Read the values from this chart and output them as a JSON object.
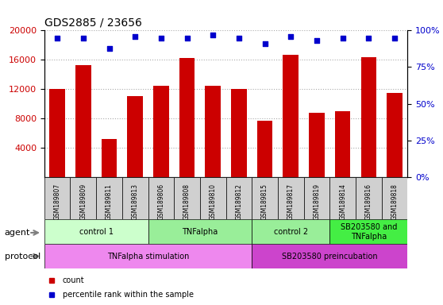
{
  "title": "GDS2885 / 23656",
  "samples": [
    "GSM189807",
    "GSM189809",
    "GSM189811",
    "GSM189813",
    "GSM189806",
    "GSM189808",
    "GSM189810",
    "GSM189812",
    "GSM189815",
    "GSM189817",
    "GSM189819",
    "GSM189814",
    "GSM189816",
    "GSM189818"
  ],
  "counts": [
    12000,
    15300,
    5200,
    11000,
    12500,
    16200,
    12500,
    12000,
    7700,
    16700,
    8800,
    9000,
    16300,
    11500
  ],
  "percentile_ranks": [
    95,
    95,
    88,
    96,
    95,
    95,
    97,
    95,
    91,
    96,
    93,
    95,
    95,
    95
  ],
  "ylim_left": [
    0,
    20000
  ],
  "ylim_right": [
    0,
    100
  ],
  "yticks_left": [
    4000,
    8000,
    12000,
    16000,
    20000
  ],
  "yticks_right": [
    0,
    25,
    50,
    75,
    100
  ],
  "bar_color": "#cc0000",
  "dot_color": "#0000cc",
  "agent_groups": [
    {
      "label": "control 1",
      "start": 0,
      "end": 4,
      "color": "#ccffcc"
    },
    {
      "label": "TNFalpha",
      "start": 4,
      "end": 8,
      "color": "#99ee99"
    },
    {
      "label": "control 2",
      "start": 8,
      "end": 11,
      "color": "#99ee99"
    },
    {
      "label": "SB203580 and\nTNFalpha",
      "start": 11,
      "end": 14,
      "color": "#44ee44"
    }
  ],
  "protocol_groups": [
    {
      "label": "TNFalpha stimulation",
      "start": 0,
      "end": 8,
      "color": "#ee88ee"
    },
    {
      "label": "SB203580 preincubation",
      "start": 8,
      "end": 14,
      "color": "#cc44cc"
    }
  ],
  "grid_color": "#aaaaaa",
  "xlabel_area_color": "#cccccc",
  "legend_items": [
    {
      "color": "#cc0000",
      "label": "count"
    },
    {
      "color": "#0000cc",
      "label": "percentile rank within the sample"
    }
  ]
}
